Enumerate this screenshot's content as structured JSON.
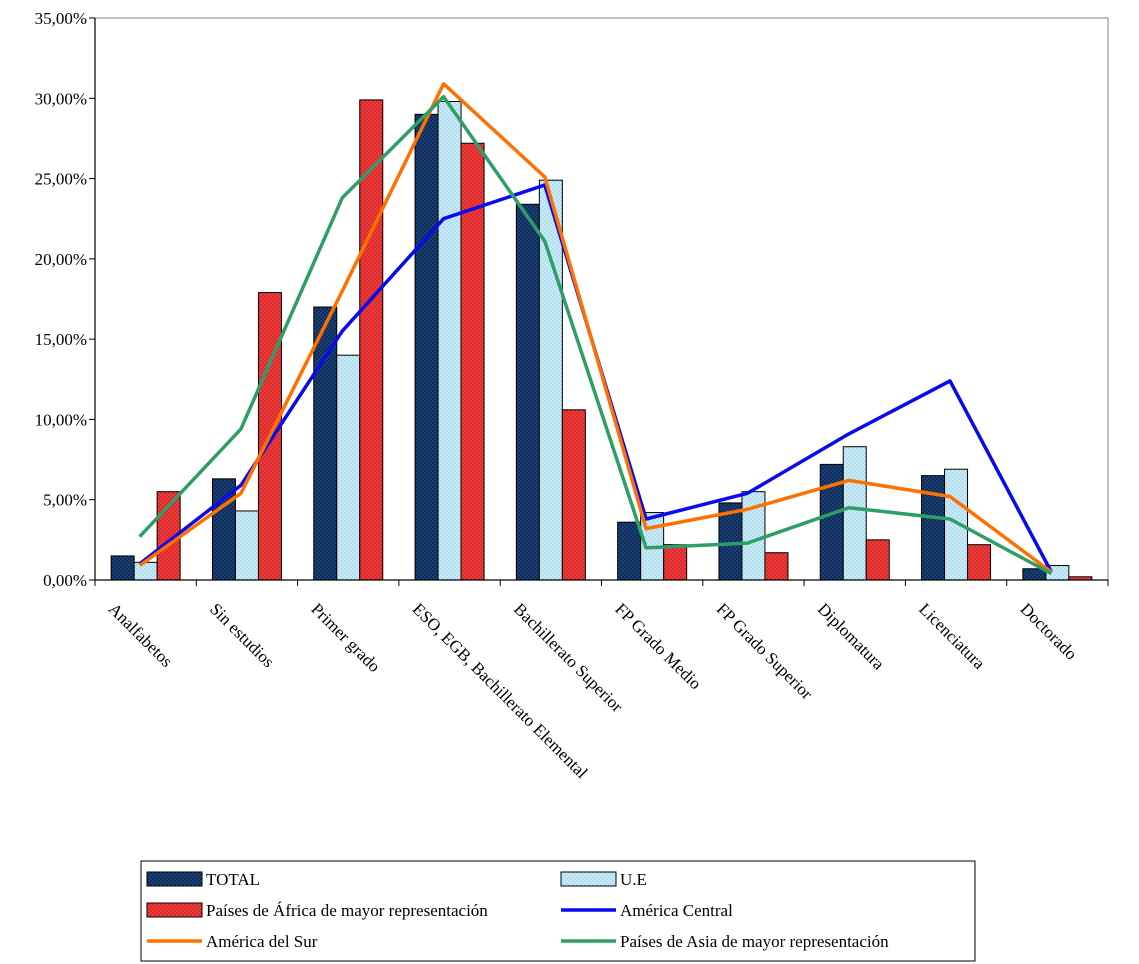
{
  "chart_data": {
    "type": "bar",
    "categories": [
      "Analfabetos",
      "Sin estudios",
      "Primer grado",
      "ESO, EGB, Bachillerato Elemental",
      "Bachillerato Superior",
      "FP Grado Medio",
      "FP Grado Superior",
      "Diplomatura",
      "Licenciatura",
      "Doctorado"
    ],
    "ylim": [
      0,
      35
    ],
    "yticks": [
      "0,00%",
      "5,00%",
      "10,00%",
      "15,00%",
      "20,00%",
      "25,00%",
      "30,00%",
      "35,00%"
    ],
    "grid": false,
    "legend_position": "bottom",
    "bar_series": [
      {
        "name": "TOTAL",
        "color": "#0b2c5c",
        "pattern": "dots-dark",
        "values": [
          1.5,
          6.3,
          17.0,
          29.0,
          23.4,
          3.6,
          4.8,
          7.2,
          6.5,
          0.7
        ]
      },
      {
        "name": "U.E",
        "color": "#c5e8f5",
        "pattern": "dots-light",
        "values": [
          1.1,
          4.3,
          14.0,
          29.8,
          24.9,
          4.2,
          5.5,
          8.3,
          6.9,
          0.9
        ]
      },
      {
        "name": "Países de África de mayor representación",
        "color": "#ee3a3a",
        "pattern": "dots-red",
        "values": [
          5.5,
          17.9,
          29.9,
          27.2,
          10.6,
          2.2,
          1.7,
          2.5,
          2.2,
          0.2
        ]
      }
    ],
    "line_series": [
      {
        "name": "América Central",
        "color": "#0a0aee",
        "values": [
          1.0,
          5.9,
          15.5,
          22.5,
          24.6,
          3.8,
          5.4,
          9.1,
          12.4,
          0.5
        ]
      },
      {
        "name": "América del Sur",
        "color": "#ff7000",
        "values": [
          0.9,
          5.4,
          18.0,
          30.9,
          25.1,
          3.2,
          4.4,
          6.2,
          5.2,
          0.5
        ]
      },
      {
        "name": "Países de Asia de mayor representación",
        "color": "#2e9e66",
        "values": [
          2.7,
          9.4,
          23.8,
          30.1,
          21.1,
          2.0,
          2.3,
          4.5,
          3.8,
          0.4
        ]
      }
    ],
    "legend": [
      {
        "label": "TOTAL",
        "kind": "bar",
        "series": "bar_series.0"
      },
      {
        "label": "U.E",
        "kind": "bar",
        "series": "bar_series.1"
      },
      {
        "label": "Países de África de mayor representación",
        "kind": "bar",
        "series": "bar_series.2"
      },
      {
        "label": "América Central",
        "kind": "line",
        "series": "line_series.0"
      },
      {
        "label": "América del Sur",
        "kind": "line",
        "series": "line_series.1"
      },
      {
        "label": "Países de Asia de mayor representación",
        "kind": "line",
        "series": "line_series.2"
      }
    ]
  }
}
